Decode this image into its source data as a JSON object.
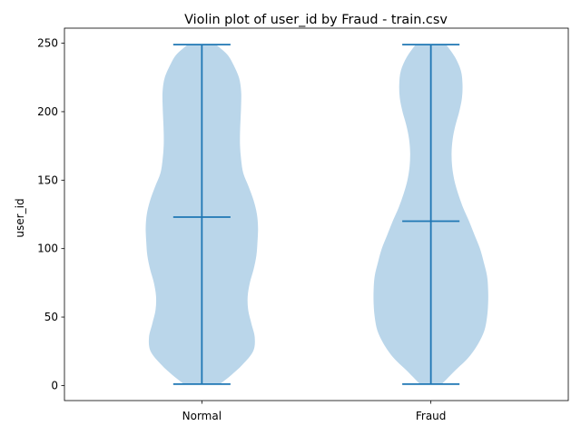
{
  "chart_data": {
    "type": "violin",
    "title": "Violin plot of user_id by Fraud - train.csv",
    "xlabel": "",
    "ylabel": "user_id",
    "ylim": [
      -11,
      261
    ],
    "yticks": [
      0,
      50,
      100,
      150,
      200,
      250
    ],
    "grid": false,
    "colors": {
      "body": "#bad6ea",
      "line": "#1f77b4"
    },
    "categories": [
      "Normal",
      "Fraud"
    ],
    "violins": [
      {
        "name": "Normal",
        "min": 1,
        "max": 249,
        "median": 123,
        "density_y": [
          1,
          8,
          15,
          25,
          35,
          45,
          55,
          65,
          75,
          85,
          95,
          105,
          115,
          125,
          135,
          145,
          155,
          165,
          175,
          185,
          195,
          205,
          215,
          225,
          235,
          242,
          249
        ],
        "density_halfwidth": [
          0.33,
          0.55,
          0.74,
          0.94,
          0.97,
          0.91,
          0.85,
          0.84,
          0.88,
          0.95,
          1.0,
          1.02,
          1.03,
          1.01,
          0.95,
          0.86,
          0.76,
          0.72,
          0.7,
          0.7,
          0.71,
          0.72,
          0.72,
          0.68,
          0.57,
          0.46,
          0.26
        ]
      },
      {
        "name": "Fraud",
        "min": 1,
        "max": 249,
        "median": 120,
        "density_y": [
          1,
          10,
          20,
          30,
          40,
          50,
          60,
          70,
          80,
          90,
          100,
          110,
          120,
          130,
          140,
          150,
          160,
          170,
          180,
          190,
          200,
          210,
          220,
          230,
          240,
          249
        ],
        "density_halfwidth": [
          0.2,
          0.42,
          0.68,
          0.86,
          0.98,
          1.03,
          1.05,
          1.05,
          1.03,
          0.97,
          0.9,
          0.8,
          0.7,
          0.59,
          0.5,
          0.43,
          0.39,
          0.38,
          0.4,
          0.45,
          0.52,
          0.57,
          0.58,
          0.55,
          0.44,
          0.28
        ]
      }
    ]
  }
}
